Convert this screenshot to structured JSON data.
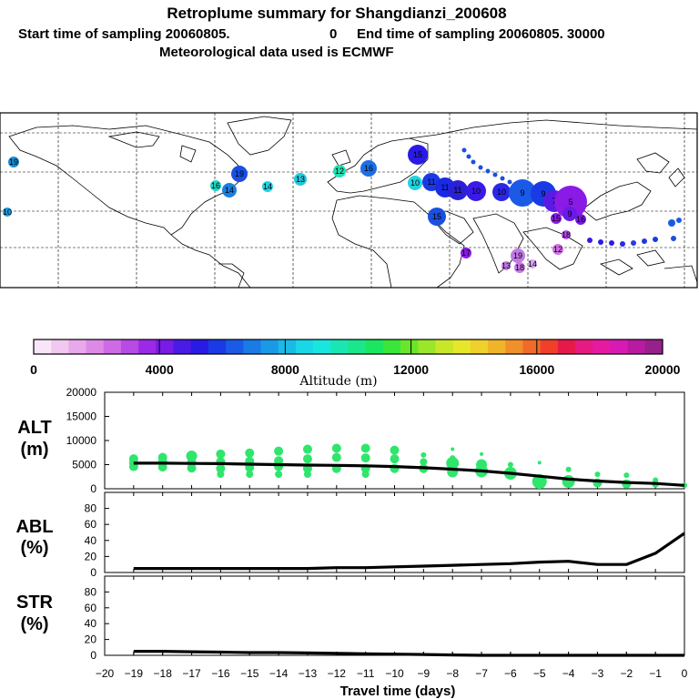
{
  "header": {
    "title": "Retroplume summary for Shangdianzi_200608",
    "subtitle_start": "Start time of sampling 20060805.",
    "subtitle_zero": "0",
    "subtitle_end": "End time of sampling 20060805. 30000",
    "met_line": "Meteorological data used is ECMWF"
  },
  "colors": {
    "scatter": "#2ee66c",
    "line": "#000000",
    "grid": "#000000"
  },
  "chart_data": [
    {
      "type": "scatter",
      "name": "map",
      "note": "Retroplume cluster positions on world map, labeled by days before sampling",
      "labels": [
        "19",
        "19",
        "10",
        "16",
        "15",
        "14",
        "13",
        "12",
        "16",
        "14",
        "10",
        "15",
        "11",
        "11",
        "11",
        "10",
        "10",
        "9",
        "9",
        "7",
        "5",
        "17",
        "19",
        "18",
        "13",
        "14",
        "12",
        "18",
        "16",
        "15",
        "9"
      ],
      "labels_visible_note": "cluster marker numbers"
    },
    {
      "type": "colorbar",
      "name": "altitude-colorbar",
      "ticks": [
        "0",
        "4000",
        "8000",
        "12000",
        "16000",
        "20000"
      ],
      "label": "Altitude (m)",
      "range": [
        0,
        20000
      ]
    },
    {
      "type": "line",
      "name": "ALT",
      "ylabel_line1": "ALT",
      "ylabel_line2": "(m)",
      "ylim": [
        0,
        20000
      ],
      "yticks": [
        "0",
        "5000",
        "10000",
        "15000",
        "20000"
      ],
      "x": [
        -19,
        -18,
        -17,
        -16,
        -15,
        -14,
        -13,
        -12,
        -11,
        -10,
        -9,
        -8,
        -7,
        -6,
        -5,
        -4,
        -3,
        -2,
        -1,
        0
      ],
      "values": [
        5300,
        5300,
        5250,
        5200,
        5100,
        5000,
        4900,
        4850,
        4750,
        4600,
        4350,
        4050,
        3700,
        3200,
        2600,
        2000,
        1600,
        1300,
        1100,
        700
      ],
      "scatter_points": [
        {
          "x": -19,
          "y": 6200,
          "s": 5
        },
        {
          "x": -19,
          "y": 5400,
          "s": 5
        },
        {
          "x": -19,
          "y": 4600,
          "s": 5
        },
        {
          "x": -18,
          "y": 6500,
          "s": 5
        },
        {
          "x": -18,
          "y": 5600,
          "s": 5
        },
        {
          "x": -18,
          "y": 4500,
          "s": 5
        },
        {
          "x": -17,
          "y": 6800,
          "s": 6
        },
        {
          "x": -17,
          "y": 5500,
          "s": 5
        },
        {
          "x": -17,
          "y": 4300,
          "s": 5
        },
        {
          "x": -16,
          "y": 7200,
          "s": 5
        },
        {
          "x": -16,
          "y": 5600,
          "s": 5
        },
        {
          "x": -16,
          "y": 4200,
          "s": 5
        },
        {
          "x": -16,
          "y": 3000,
          "s": 4
        },
        {
          "x": -15,
          "y": 7400,
          "s": 5
        },
        {
          "x": -15,
          "y": 5700,
          "s": 5
        },
        {
          "x": -15,
          "y": 4400,
          "s": 5
        },
        {
          "x": -15,
          "y": 3000,
          "s": 4
        },
        {
          "x": -14,
          "y": 7800,
          "s": 5
        },
        {
          "x": -14,
          "y": 5800,
          "s": 5
        },
        {
          "x": -14,
          "y": 4600,
          "s": 5
        },
        {
          "x": -14,
          "y": 3000,
          "s": 4
        },
        {
          "x": -13,
          "y": 8200,
          "s": 5
        },
        {
          "x": -13,
          "y": 6200,
          "s": 5
        },
        {
          "x": -13,
          "y": 4200,
          "s": 5
        },
        {
          "x": -13,
          "y": 3000,
          "s": 4
        },
        {
          "x": -12,
          "y": 8400,
          "s": 5
        },
        {
          "x": -12,
          "y": 6500,
          "s": 5
        },
        {
          "x": -12,
          "y": 4200,
          "s": 5
        },
        {
          "x": -11,
          "y": 8400,
          "s": 5
        },
        {
          "x": -11,
          "y": 6400,
          "s": 5
        },
        {
          "x": -11,
          "y": 4200,
          "s": 5
        },
        {
          "x": -11,
          "y": 3000,
          "s": 4
        },
        {
          "x": -10,
          "y": 8000,
          "s": 5
        },
        {
          "x": -10,
          "y": 6200,
          "s": 5
        },
        {
          "x": -10,
          "y": 4200,
          "s": 5
        },
        {
          "x": -9,
          "y": 7000,
          "s": 3
        },
        {
          "x": -9,
          "y": 5600,
          "s": 4
        },
        {
          "x": -9,
          "y": 4200,
          "s": 5
        },
        {
          "x": -8,
          "y": 8200,
          "s": 2
        },
        {
          "x": -8,
          "y": 6400,
          "s": 3
        },
        {
          "x": -8,
          "y": 5300,
          "s": 7
        },
        {
          "x": -8,
          "y": 3500,
          "s": 6
        },
        {
          "x": -7,
          "y": 7200,
          "s": 2
        },
        {
          "x": -7,
          "y": 5000,
          "s": 6
        },
        {
          "x": -7,
          "y": 3700,
          "s": 7
        },
        {
          "x": -6,
          "y": 5000,
          "s": 3
        },
        {
          "x": -6,
          "y": 3200,
          "s": 7
        },
        {
          "x": -5,
          "y": 5400,
          "s": 2
        },
        {
          "x": -5,
          "y": 1500,
          "s": 8
        },
        {
          "x": -4,
          "y": 4000,
          "s": 3
        },
        {
          "x": -4,
          "y": 1500,
          "s": 7
        },
        {
          "x": -3,
          "y": 3000,
          "s": 3
        },
        {
          "x": -3,
          "y": 1200,
          "s": 5
        },
        {
          "x": -2,
          "y": 2800,
          "s": 3
        },
        {
          "x": -2,
          "y": 1000,
          "s": 5
        },
        {
          "x": -1,
          "y": 1800,
          "s": 3
        },
        {
          "x": -1,
          "y": 1000,
          "s": 4
        },
        {
          "x": 0,
          "y": 700,
          "s": 3
        }
      ]
    },
    {
      "type": "line",
      "name": "ABL",
      "ylabel_line1": "ABL",
      "ylabel_line2": "(%)",
      "ylim": [
        0,
        100
      ],
      "yticks": [
        "0",
        "20",
        "40",
        "60",
        "80"
      ],
      "x": [
        -19,
        -18,
        -17,
        -16,
        -15,
        -14,
        -13,
        -12,
        -11,
        -10,
        -9,
        -8,
        -7,
        -6,
        -5,
        -4,
        -3,
        -2,
        -1,
        0
      ],
      "values": [
        5,
        5,
        5,
        5,
        5,
        5,
        5,
        6,
        6,
        7,
        8,
        9,
        10,
        11,
        13,
        14,
        10,
        10,
        24,
        49
      ]
    },
    {
      "type": "line",
      "name": "STR",
      "ylabel_line1": "STR",
      "ylabel_line2": "(%)",
      "ylim": [
        0,
        100
      ],
      "yticks": [
        "0",
        "20",
        "40",
        "60",
        "80"
      ],
      "x": [
        -19,
        -18,
        -17,
        -16,
        -15,
        -14,
        -13,
        -12,
        -11,
        -10,
        -9,
        -8,
        -7,
        -6,
        -5,
        -4,
        -3,
        -2,
        -1,
        0
      ],
      "values": [
        5,
        5,
        4.5,
        4,
        3.5,
        3.5,
        3,
        2.5,
        2,
        1.5,
        1,
        0.5,
        0,
        0,
        0,
        0,
        0,
        0,
        0,
        0
      ]
    }
  ],
  "xaxis": {
    "ticks": [
      "−20",
      "−19",
      "−18",
      "−17",
      "−16",
      "−15",
      "−14",
      "−13",
      "−12",
      "−11",
      "−10",
      "−9",
      "−8",
      "−7",
      "−6",
      "−5",
      "−4",
      "−3",
      "−2",
      "−1",
      "0"
    ],
    "label": "Travel time (days)"
  }
}
